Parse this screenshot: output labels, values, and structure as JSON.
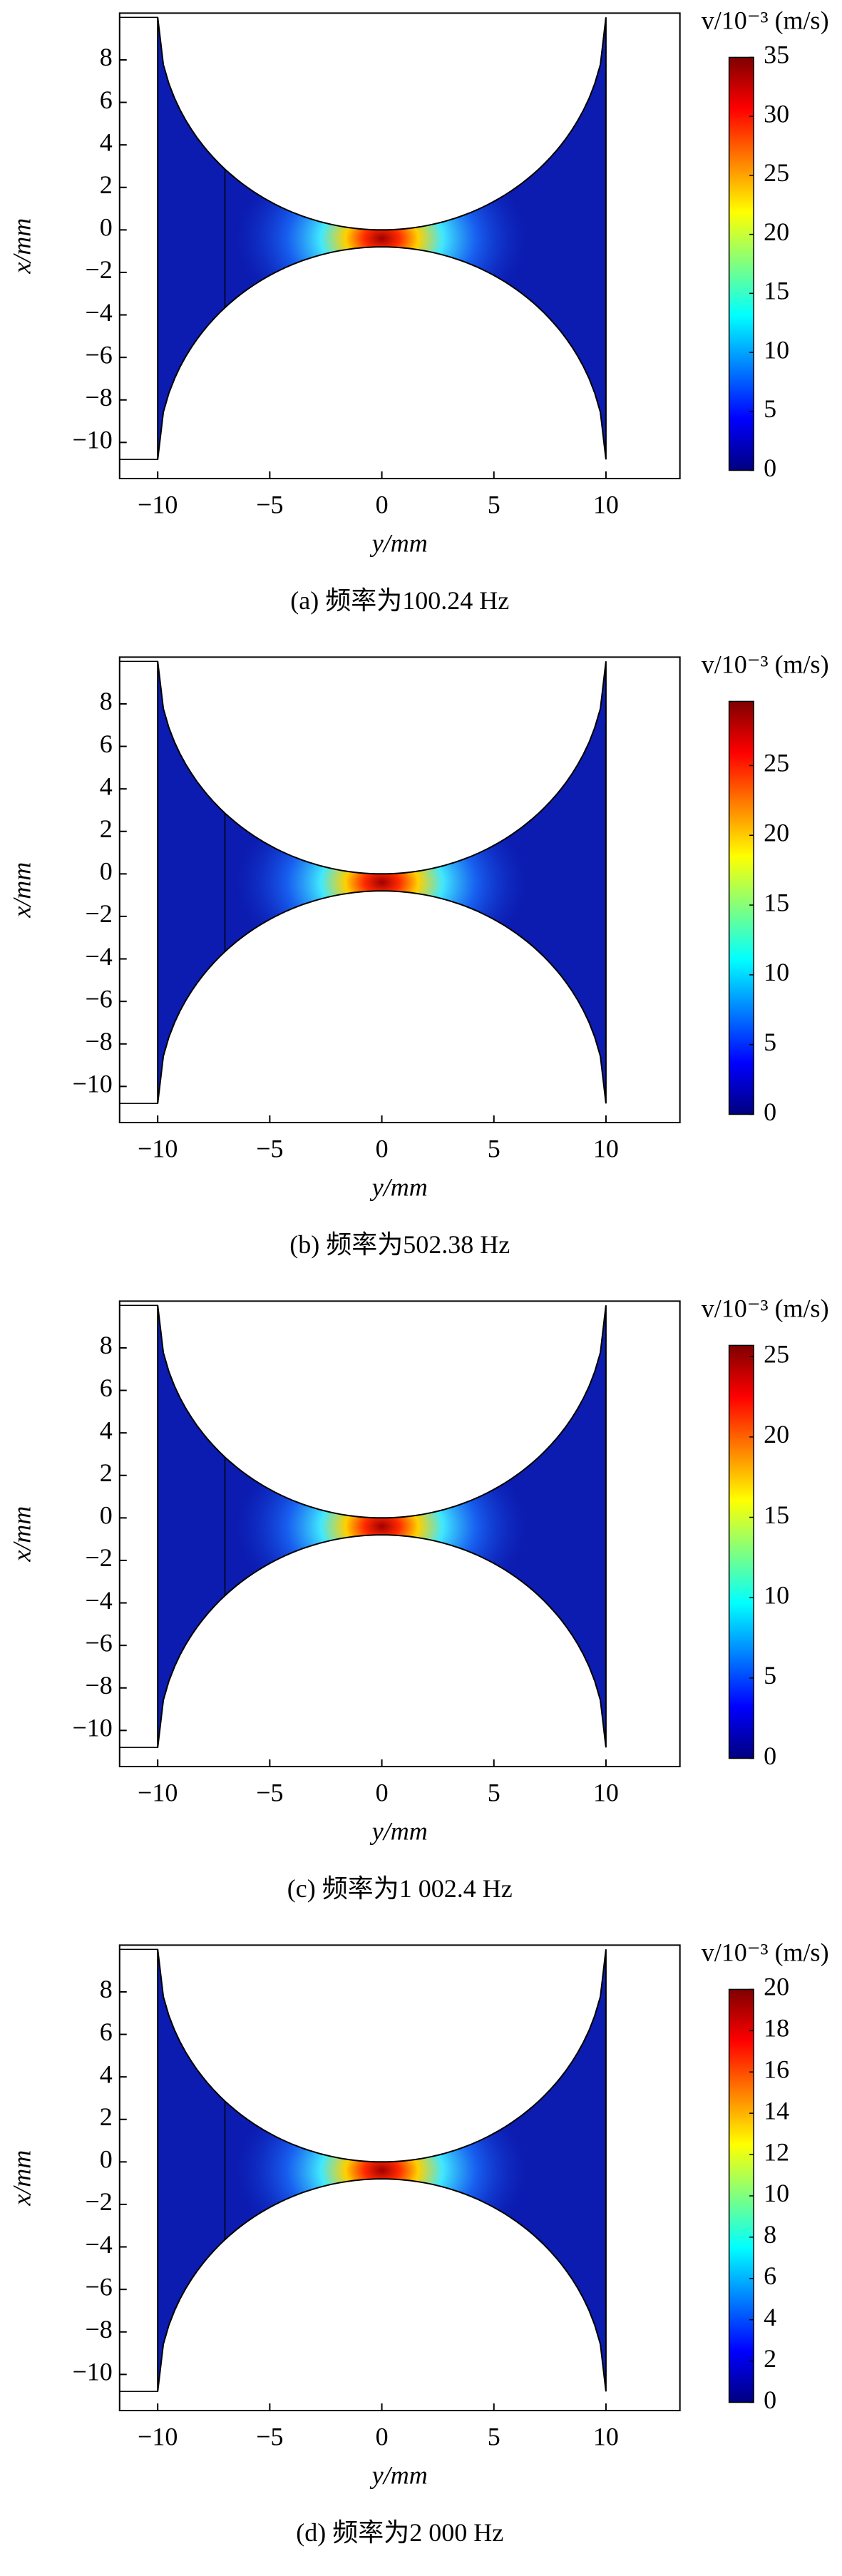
{
  "chart_data": [
    {
      "type": "field",
      "xlabel": "y/mm",
      "ylabel": "x/mm",
      "colorbar_label": "v/10⁻³ (m/s)",
      "caption": "(a) 频率为100.24 Hz",
      "xlim": [
        -11.7,
        13.3
      ],
      "ylim": [
        -11.7,
        10.2
      ],
      "xticks": [
        {
          "value": -10,
          "label": "−10"
        },
        {
          "value": -5,
          "label": "−5"
        },
        0,
        5,
        10
      ],
      "yticks": [
        8,
        6,
        4,
        2,
        0,
        {
          "value": -2,
          "label": "−2"
        },
        {
          "value": -4,
          "label": "−4"
        },
        {
          "value": -6,
          "label": "−6"
        },
        {
          "value": -8,
          "label": "−8"
        },
        {
          "value": -10,
          "label": "−10"
        }
      ],
      "colorbar_lim": [
        0,
        35
      ],
      "colorbar_ticks": [
        0,
        5,
        10,
        15,
        20,
        25,
        30,
        35
      ]
    },
    {
      "type": "field",
      "xlabel": "y/mm",
      "ylabel": "x/mm",
      "colorbar_label": "v/10⁻³ (m/s)",
      "caption": "(b) 频率为502.38 Hz",
      "xlim": [
        -11.7,
        13.3
      ],
      "ylim": [
        -11.7,
        10.2
      ],
      "xticks": [
        {
          "value": -10,
          "label": "−10"
        },
        {
          "value": -5,
          "label": "−5"
        },
        0,
        5,
        10
      ],
      "yticks": [
        8,
        6,
        4,
        2,
        0,
        {
          "value": -2,
          "label": "−2"
        },
        {
          "value": -4,
          "label": "−4"
        },
        {
          "value": -6,
          "label": "−6"
        },
        {
          "value": -8,
          "label": "−8"
        },
        {
          "value": -10,
          "label": "−10"
        }
      ],
      "colorbar_lim": [
        0,
        29.6
      ],
      "colorbar_ticks": [
        0,
        5,
        10,
        15,
        20,
        25
      ]
    },
    {
      "type": "field",
      "xlabel": "y/mm",
      "ylabel": "x/mm",
      "colorbar_label": "v/10⁻³ (m/s)",
      "caption": "(c) 频率为1 002.4 Hz",
      "xlim": [
        -11.7,
        13.3
      ],
      "ylim": [
        -11.7,
        10.2
      ],
      "xticks": [
        {
          "value": -10,
          "label": "−10"
        },
        {
          "value": -5,
          "label": "−5"
        },
        0,
        5,
        10
      ],
      "yticks": [
        8,
        6,
        4,
        2,
        0,
        {
          "value": -2,
          "label": "−2"
        },
        {
          "value": -4,
          "label": "−4"
        },
        {
          "value": -6,
          "label": "−6"
        },
        {
          "value": -8,
          "label": "−8"
        },
        {
          "value": -10,
          "label": "−10"
        }
      ],
      "colorbar_lim": [
        0,
        25.7
      ],
      "colorbar_ticks": [
        0,
        5,
        10,
        15,
        20,
        25
      ]
    },
    {
      "type": "field",
      "xlabel": "y/mm",
      "ylabel": "x/mm",
      "colorbar_label": "v/10⁻³ (m/s)",
      "caption": "(d) 频率为2 000 Hz",
      "xlim": [
        -11.7,
        13.3
      ],
      "ylim": [
        -11.7,
        10.2
      ],
      "xticks": [
        {
          "value": -10,
          "label": "−10"
        },
        {
          "value": -5,
          "label": "−5"
        },
        0,
        5,
        10
      ],
      "yticks": [
        8,
        6,
        4,
        2,
        0,
        {
          "value": -2,
          "label": "−2"
        },
        {
          "value": -4,
          "label": "−4"
        },
        {
          "value": -6,
          "label": "−6"
        },
        {
          "value": -8,
          "label": "−8"
        },
        {
          "value": -10,
          "label": "−10"
        }
      ],
      "colorbar_lim": [
        0,
        20
      ],
      "colorbar_ticks": [
        0,
        2,
        4,
        6,
        8,
        10,
        12,
        14,
        16,
        18,
        20
      ]
    }
  ]
}
